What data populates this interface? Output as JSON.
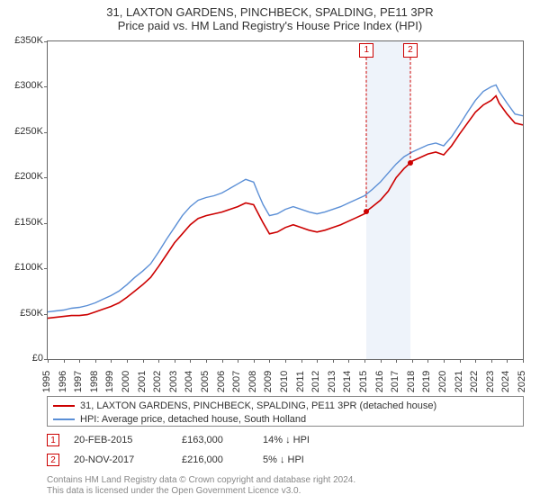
{
  "title_line1": "31, LAXTON GARDENS, PINCHBECK, SPALDING, PE11 3PR",
  "title_line2": "Price paid vs. HM Land Registry's House Price Index (HPI)",
  "chart": {
    "type": "line",
    "background_color": "#ffffff",
    "plot_border_color": "#666666",
    "shade_band_color": "#eef3fa",
    "x_start_year": 1995,
    "x_end_year": 2025,
    "ylim": [
      0,
      350000
    ],
    "ytick_step": 50000,
    "ytick_labels": [
      "£0",
      "£50K",
      "£100K",
      "£150K",
      "£200K",
      "£250K",
      "£300K",
      "£350K"
    ],
    "xtick_years": [
      1995,
      1996,
      1997,
      1998,
      1999,
      2000,
      2001,
      2002,
      2003,
      2004,
      2005,
      2006,
      2007,
      2008,
      2009,
      2010,
      2011,
      2012,
      2013,
      2014,
      2015,
      2016,
      2017,
      2018,
      2019,
      2020,
      2021,
      2022,
      2023,
      2024,
      2025
    ],
    "series": [
      {
        "name": "price_paid",
        "color": "#cc0000",
        "width": 1.6,
        "points": [
          [
            1995.0,
            45000
          ],
          [
            1995.5,
            46000
          ],
          [
            1996.0,
            47000
          ],
          [
            1996.5,
            48000
          ],
          [
            1997.0,
            48000
          ],
          [
            1997.5,
            49000
          ],
          [
            1998.0,
            52000
          ],
          [
            1998.5,
            55000
          ],
          [
            1999.0,
            58000
          ],
          [
            1999.5,
            62000
          ],
          [
            2000.0,
            68000
          ],
          [
            2000.5,
            75000
          ],
          [
            2001.0,
            82000
          ],
          [
            2001.5,
            90000
          ],
          [
            2002.0,
            102000
          ],
          [
            2002.5,
            115000
          ],
          [
            2003.0,
            128000
          ],
          [
            2003.5,
            138000
          ],
          [
            2004.0,
            148000
          ],
          [
            2004.5,
            155000
          ],
          [
            2005.0,
            158000
          ],
          [
            2005.5,
            160000
          ],
          [
            2006.0,
            162000
          ],
          [
            2006.5,
            165000
          ],
          [
            2007.0,
            168000
          ],
          [
            2007.5,
            172000
          ],
          [
            2008.0,
            170000
          ],
          [
            2008.3,
            160000
          ],
          [
            2008.6,
            150000
          ],
          [
            2009.0,
            138000
          ],
          [
            2009.5,
            140000
          ],
          [
            2010.0,
            145000
          ],
          [
            2010.5,
            148000
          ],
          [
            2011.0,
            145000
          ],
          [
            2011.5,
            142000
          ],
          [
            2012.0,
            140000
          ],
          [
            2012.5,
            142000
          ],
          [
            2013.0,
            145000
          ],
          [
            2013.5,
            148000
          ],
          [
            2014.0,
            152000
          ],
          [
            2014.5,
            156000
          ],
          [
            2015.0,
            160000
          ],
          [
            2015.13,
            163000
          ],
          [
            2015.5,
            168000
          ],
          [
            2016.0,
            175000
          ],
          [
            2016.5,
            185000
          ],
          [
            2017.0,
            200000
          ],
          [
            2017.5,
            210000
          ],
          [
            2017.89,
            216000
          ],
          [
            2018.0,
            218000
          ],
          [
            2018.5,
            222000
          ],
          [
            2019.0,
            226000
          ],
          [
            2019.5,
            228000
          ],
          [
            2020.0,
            225000
          ],
          [
            2020.5,
            235000
          ],
          [
            2021.0,
            248000
          ],
          [
            2021.5,
            260000
          ],
          [
            2022.0,
            272000
          ],
          [
            2022.5,
            280000
          ],
          [
            2023.0,
            285000
          ],
          [
            2023.3,
            290000
          ],
          [
            2023.5,
            282000
          ],
          [
            2024.0,
            270000
          ],
          [
            2024.5,
            260000
          ],
          [
            2025.0,
            258000
          ]
        ]
      },
      {
        "name": "hpi",
        "color": "#5b8fd6",
        "width": 1.4,
        "points": [
          [
            1995.0,
            52000
          ],
          [
            1995.5,
            53000
          ],
          [
            1996.0,
            54000
          ],
          [
            1996.5,
            56000
          ],
          [
            1997.0,
            57000
          ],
          [
            1997.5,
            59000
          ],
          [
            1998.0,
            62000
          ],
          [
            1998.5,
            66000
          ],
          [
            1999.0,
            70000
          ],
          [
            1999.5,
            75000
          ],
          [
            2000.0,
            82000
          ],
          [
            2000.5,
            90000
          ],
          [
            2001.0,
            97000
          ],
          [
            2001.5,
            105000
          ],
          [
            2002.0,
            118000
          ],
          [
            2002.5,
            132000
          ],
          [
            2003.0,
            145000
          ],
          [
            2003.5,
            158000
          ],
          [
            2004.0,
            168000
          ],
          [
            2004.5,
            175000
          ],
          [
            2005.0,
            178000
          ],
          [
            2005.5,
            180000
          ],
          [
            2006.0,
            183000
          ],
          [
            2006.5,
            188000
          ],
          [
            2007.0,
            193000
          ],
          [
            2007.5,
            198000
          ],
          [
            2008.0,
            195000
          ],
          [
            2008.3,
            182000
          ],
          [
            2008.6,
            170000
          ],
          [
            2009.0,
            158000
          ],
          [
            2009.5,
            160000
          ],
          [
            2010.0,
            165000
          ],
          [
            2010.5,
            168000
          ],
          [
            2011.0,
            165000
          ],
          [
            2011.5,
            162000
          ],
          [
            2012.0,
            160000
          ],
          [
            2012.5,
            162000
          ],
          [
            2013.0,
            165000
          ],
          [
            2013.5,
            168000
          ],
          [
            2014.0,
            172000
          ],
          [
            2014.5,
            176000
          ],
          [
            2015.0,
            180000
          ],
          [
            2015.5,
            187000
          ],
          [
            2016.0,
            195000
          ],
          [
            2016.5,
            205000
          ],
          [
            2017.0,
            215000
          ],
          [
            2017.5,
            223000
          ],
          [
            2018.0,
            228000
          ],
          [
            2018.5,
            232000
          ],
          [
            2019.0,
            236000
          ],
          [
            2019.5,
            238000
          ],
          [
            2020.0,
            235000
          ],
          [
            2020.5,
            245000
          ],
          [
            2021.0,
            258000
          ],
          [
            2021.5,
            272000
          ],
          [
            2022.0,
            285000
          ],
          [
            2022.5,
            295000
          ],
          [
            2023.0,
            300000
          ],
          [
            2023.3,
            302000
          ],
          [
            2023.5,
            295000
          ],
          [
            2024.0,
            282000
          ],
          [
            2024.5,
            270000
          ],
          [
            2025.0,
            268000
          ]
        ]
      }
    ],
    "markers": [
      {
        "label": "1",
        "date_frac": 2015.13,
        "price": 163000
      },
      {
        "label": "2",
        "date_frac": 2017.89,
        "price": 216000
      }
    ]
  },
  "legend": {
    "border_color": "#888888",
    "items": [
      {
        "color": "#cc0000",
        "label": "31, LAXTON GARDENS, PINCHBECK, SPALDING, PE11 3PR (detached house)"
      },
      {
        "color": "#5b8fd6",
        "label": "HPI: Average price, detached house, South Holland"
      }
    ]
  },
  "transactions": [
    {
      "marker": "1",
      "date": "20-FEB-2015",
      "price": "£163,000",
      "diff": "14% ↓ HPI"
    },
    {
      "marker": "2",
      "date": "20-NOV-2017",
      "price": "£216,000",
      "diff": "5% ↓ HPI"
    }
  ],
  "footer_line1": "Contains HM Land Registry data © Crown copyright and database right 2024.",
  "footer_line2": "This data is licensed under the Open Government Licence v3.0."
}
